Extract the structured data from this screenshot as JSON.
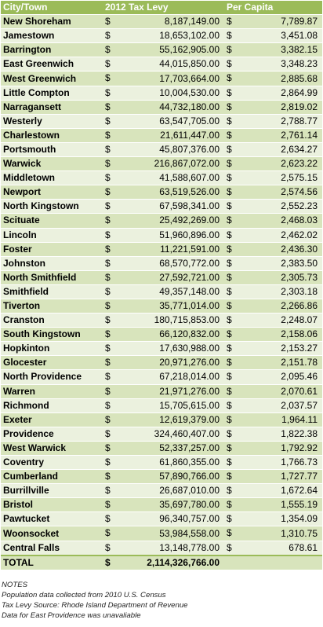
{
  "header": {
    "col_town": "City/Town",
    "col_levy": "2012 Tax Levy",
    "col_capita": "Per Capita"
  },
  "currency_symbol": "$",
  "rows": [
    {
      "town": "New Shoreham",
      "levy": "8,187,149.00",
      "per_capita": "7,789.87"
    },
    {
      "town": "Jamestown",
      "levy": "18,653,102.00",
      "per_capita": "3,451.08"
    },
    {
      "town": "Barrington",
      "levy": "55,162,905.00",
      "per_capita": "3,382.15"
    },
    {
      "town": "East Greenwich",
      "levy": "44,015,850.00",
      "per_capita": "3,348.23"
    },
    {
      "town": "West Greenwich",
      "levy": "17,703,664.00",
      "per_capita": "2,885.68"
    },
    {
      "town": "Little Compton",
      "levy": "10,004,530.00",
      "per_capita": "2,864.99"
    },
    {
      "town": "Narragansett",
      "levy": "44,732,180.00",
      "per_capita": "2,819.02"
    },
    {
      "town": "Westerly",
      "levy": "63,547,705.00",
      "per_capita": "2,788.77"
    },
    {
      "town": "Charlestown",
      "levy": "21,611,447.00",
      "per_capita": "2,761.14"
    },
    {
      "town": "Portsmouth",
      "levy": "45,807,376.00",
      "per_capita": "2,634.27"
    },
    {
      "town": "Warwick",
      "levy": "216,867,072.00",
      "per_capita": "2,623.22"
    },
    {
      "town": "Middletown",
      "levy": "41,588,607.00",
      "per_capita": "2,575.15"
    },
    {
      "town": "Newport",
      "levy": "63,519,526.00",
      "per_capita": "2,574.56"
    },
    {
      "town": "North Kingstown",
      "levy": "67,598,341.00",
      "per_capita": "2,552.23"
    },
    {
      "town": "Scituate",
      "levy": "25,492,269.00",
      "per_capita": "2,468.03"
    },
    {
      "town": "Lincoln",
      "levy": "51,960,896.00",
      "per_capita": "2,462.02"
    },
    {
      "town": "Foster",
      "levy": "11,221,591.00",
      "per_capita": "2,436.30"
    },
    {
      "town": "Johnston",
      "levy": "68,570,772.00",
      "per_capita": "2,383.50"
    },
    {
      "town": "North Smithfield",
      "levy": "27,592,721.00",
      "per_capita": "2,305.73"
    },
    {
      "town": "Smithfield",
      "levy": "49,357,148.00",
      "per_capita": "2,303.18"
    },
    {
      "town": "Tiverton",
      "levy": "35,771,014.00",
      "per_capita": "2,266.86"
    },
    {
      "town": "Cranston",
      "levy": "180,715,853.00",
      "per_capita": "2,248.07"
    },
    {
      "town": "South Kingstown",
      "levy": "66,120,832.00",
      "per_capita": "2,158.06"
    },
    {
      "town": "Hopkinton",
      "levy": "17,630,988.00",
      "per_capita": "2,153.27"
    },
    {
      "town": "Glocester",
      "levy": "20,971,276.00",
      "per_capita": "2,151.78"
    },
    {
      "town": "North Providence",
      "levy": "67,218,014.00",
      "per_capita": "2,095.46"
    },
    {
      "town": "Warren",
      "levy": "21,971,276.00",
      "per_capita": "2,070.61"
    },
    {
      "town": "Richmond",
      "levy": "15,705,615.00",
      "per_capita": "2,037.57"
    },
    {
      "town": "Exeter",
      "levy": "12,619,379.00",
      "per_capita": "1,964.11"
    },
    {
      "town": "Providence",
      "levy": "324,460,407.00",
      "per_capita": "1,822.38"
    },
    {
      "town": "West Warwick",
      "levy": "52,337,257.00",
      "per_capita": "1,792.92"
    },
    {
      "town": "Coventry",
      "levy": "61,860,355.00",
      "per_capita": "1,766.73"
    },
    {
      "town": "Cumberland",
      "levy": "57,890,766.00",
      "per_capita": "1,727.77"
    },
    {
      "town": "Burrillville",
      "levy": "26,687,010.00",
      "per_capita": "1,672.64"
    },
    {
      "town": "Bristol",
      "levy": "35,697,780.00",
      "per_capita": "1,555.19"
    },
    {
      "town": "Pawtucket",
      "levy": "96,340,757.00",
      "per_capita": "1,354.09"
    },
    {
      "town": "Woonsocket",
      "levy": "53,984,558.00",
      "per_capita": "1,310.75"
    },
    {
      "town": "Central Falls",
      "levy": "13,148,778.00",
      "per_capita": "678.61"
    }
  ],
  "total": {
    "label": "TOTAL",
    "levy": "2,114,326,766.00"
  },
  "notes": [
    "NOTES",
    "Population data collected from 2010 U.S. Census",
    "Tax Levy Source: Rhode Island Department of Revenue",
    "Data for East Providence was unavaliable"
  ],
  "colors": {
    "header": "#9bbb59",
    "row_dark": "#d8e4bc",
    "row_light": "#ebf1de"
  }
}
